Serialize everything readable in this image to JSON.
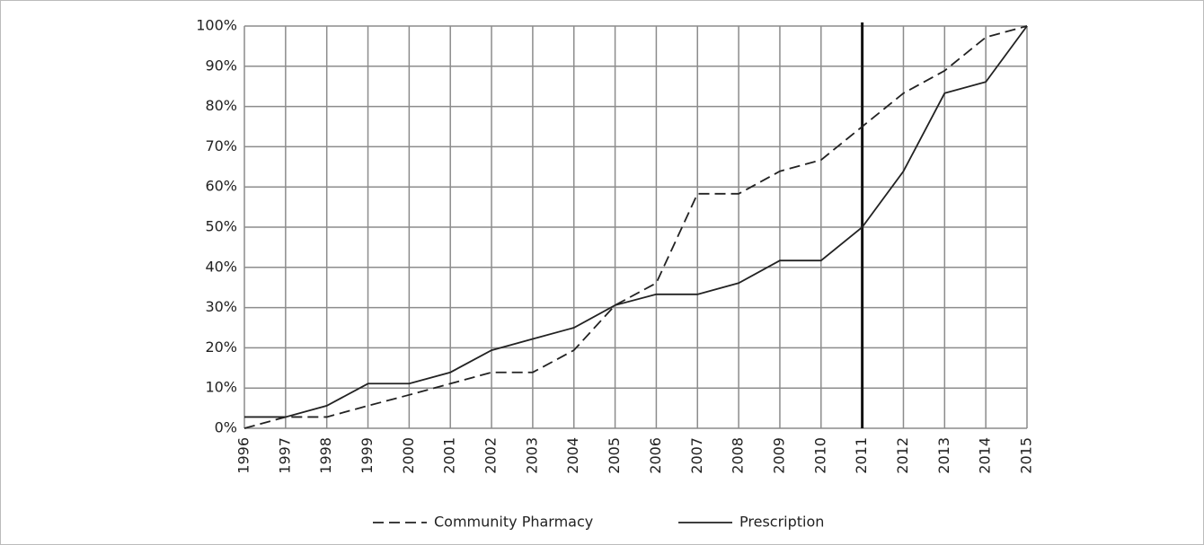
{
  "chart_data": {
    "type": "line",
    "categories": [
      "1996",
      "1997",
      "1998",
      "1999",
      "2000",
      "2001",
      "2002",
      "2003",
      "2004",
      "2005",
      "2006",
      "2007",
      "2008",
      "2009",
      "2010",
      "2011",
      "2012",
      "2013",
      "2014",
      "2015"
    ],
    "series": [
      {
        "name": "Community Pharmacy",
        "color": "#222222",
        "dash": true,
        "values": [
          0,
          2.8,
          2.8,
          5.6,
          8.3,
          11.1,
          13.9,
          13.9,
          19.4,
          30.6,
          36.1,
          58.3,
          58.3,
          63.9,
          66.7,
          75,
          83.3,
          88.9,
          97.2,
          100
        ]
      },
      {
        "name": "Prescription",
        "color": "#222222",
        "dash": false,
        "values": [
          2.8,
          2.8,
          5.6,
          11.1,
          11.1,
          13.9,
          19.4,
          22.2,
          25,
          30.6,
          33.3,
          33.3,
          36.1,
          41.7,
          41.7,
          50,
          63.9,
          83.3,
          86.1,
          100
        ]
      }
    ],
    "ylim": [
      0,
      100
    ],
    "yticks": [
      {
        "value": 0,
        "label": "0%"
      },
      {
        "value": 10,
        "label": "10%"
      },
      {
        "value": 20,
        "label": "20%"
      },
      {
        "value": 30,
        "label": "30%"
      },
      {
        "value": 40,
        "label": "40%"
      },
      {
        "value": 50,
        "label": "50%"
      },
      {
        "value": 60,
        "label": "60%"
      },
      {
        "value": 70,
        "label": "70%"
      },
      {
        "value": 80,
        "label": "80%"
      },
      {
        "value": 90,
        "label": "90%"
      },
      {
        "value": 100,
        "label": "100%"
      }
    ],
    "grid": true,
    "reference_line": "2011",
    "legend": "bottom"
  }
}
